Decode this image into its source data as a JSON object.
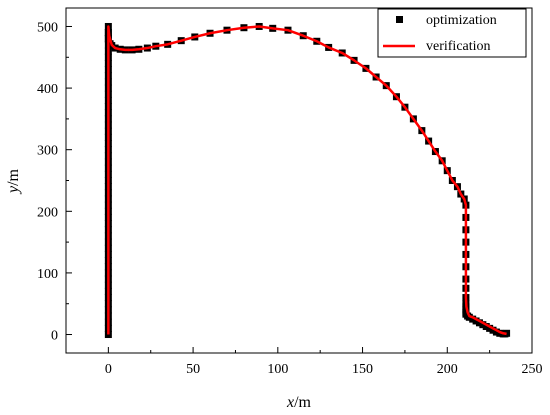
{
  "chart_data": {
    "type": "scatter",
    "xlabel": {
      "var": "x",
      "unit": "/m"
    },
    "ylabel": {
      "var": "y",
      "unit": "/m"
    },
    "xlim": [
      -25,
      250
    ],
    "ylim": [
      -30,
      530
    ],
    "xticks": [
      0,
      50,
      100,
      150,
      200,
      250
    ],
    "yticks": [
      0,
      100,
      200,
      300,
      400,
      500
    ],
    "grid": false,
    "legend_position": "top-right",
    "series": [
      {
        "name": "optimization",
        "kind": "markers",
        "marker": "square",
        "color": "#000000",
        "x": [
          0,
          0,
          0,
          0,
          0,
          0,
          0,
          0,
          0,
          0,
          0,
          0,
          0,
          0,
          0,
          0,
          0,
          0,
          0,
          0,
          0,
          0,
          0,
          0,
          0,
          0,
          0,
          0,
          0,
          0,
          0,
          0,
          0,
          0,
          0,
          0,
          0,
          0,
          0,
          0,
          0,
          0,
          0,
          0,
          0,
          0,
          0,
          0,
          0,
          0,
          0,
          0,
          0,
          1,
          2,
          4,
          7,
          10,
          14,
          18,
          23,
          28,
          35,
          43,
          51,
          60,
          70,
          80,
          89,
          97,
          106,
          115,
          123,
          130,
          138,
          145,
          152,
          158,
          164,
          170,
          175,
          180,
          185,
          189,
          193,
          197,
          200,
          203,
          206,
          208,
          210,
          211,
          211,
          211,
          211,
          211,
          211,
          211,
          211,
          211,
          211,
          211,
          211,
          211,
          211,
          212,
          213,
          215,
          217,
          219,
          221,
          223,
          225,
          227,
          229,
          231,
          233,
          234,
          235
        ],
        "y": [
          0,
          10,
          20,
          30,
          40,
          50,
          60,
          70,
          80,
          90,
          100,
          110,
          120,
          130,
          140,
          150,
          160,
          170,
          180,
          190,
          200,
          210,
          220,
          230,
          240,
          250,
          260,
          270,
          280,
          290,
          300,
          310,
          320,
          330,
          340,
          350,
          360,
          370,
          380,
          390,
          400,
          410,
          420,
          430,
          440,
          450,
          460,
          470,
          480,
          490,
          500,
          490,
          480,
          472,
          469,
          465,
          463,
          462,
          462,
          463,
          465,
          468,
          471,
          477,
          483,
          489,
          494,
          498,
          500,
          497,
          494,
          485,
          476,
          466,
          457,
          445,
          432,
          418,
          404,
          386,
          369,
          350,
          331,
          314,
          297,
          282,
          266,
          250,
          240,
          228,
          220,
          210,
          190,
          170,
          150,
          130,
          110,
          90,
          75,
          60,
          50,
          45,
          40,
          36,
          33,
          30,
          28,
          25,
          22,
          19,
          16,
          13,
          10,
          7,
          4,
          2,
          1,
          1,
          2
        ]
      },
      {
        "name": "verification",
        "kind": "line",
        "color": "#ff0000",
        "x": [
          0,
          0,
          0.5,
          2,
          4,
          7,
          10,
          14,
          18,
          23,
          28,
          35,
          43,
          51,
          60,
          70,
          80,
          89,
          97,
          106,
          115,
          123,
          130,
          138,
          145,
          152,
          158,
          164,
          170,
          175,
          180,
          185,
          189,
          193,
          197,
          200,
          203,
          206,
          208,
          210,
          211,
          211,
          211.3,
          212,
          213,
          215,
          217,
          219,
          221,
          223,
          225,
          227,
          229,
          231,
          233,
          235
        ],
        "y": [
          0,
          500,
          485,
          470,
          465,
          463,
          462,
          462,
          463,
          465,
          468,
          471,
          477,
          483,
          489,
          494,
          498,
          500,
          497,
          494,
          485,
          476,
          466,
          457,
          445,
          432,
          418,
          404,
          386,
          369,
          350,
          331,
          314,
          297,
          282,
          266,
          250,
          240,
          228,
          220,
          210,
          60,
          45,
          36,
          30,
          28,
          25,
          22,
          19,
          16,
          13,
          10,
          7,
          4,
          2,
          1
        ]
      }
    ]
  }
}
